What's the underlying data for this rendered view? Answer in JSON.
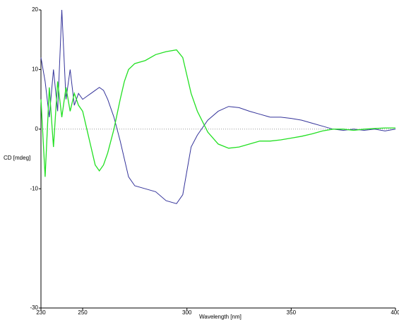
{
  "chart_data": {
    "type": "line",
    "x_label": "Wavelength [nm]",
    "y_label": "CD [mdeg]",
    "x": [
      230,
      232,
      234,
      236,
      238,
      240,
      242,
      244,
      246,
      248,
      250,
      252,
      254,
      256,
      258,
      260,
      262,
      265,
      268,
      270,
      272,
      275,
      280,
      285,
      290,
      295,
      298,
      300,
      302,
      305,
      310,
      315,
      320,
      325,
      330,
      335,
      340,
      345,
      350,
      355,
      360,
      365,
      370,
      375,
      380,
      385,
      390,
      395,
      400
    ],
    "series": [
      {
        "color": "#34339a",
        "values": [
          12,
          8,
          2,
          10,
          3,
          20,
          5,
          10,
          4,
          6,
          5,
          5.5,
          6,
          6.5,
          7,
          6.5,
          5,
          2,
          -2,
          -5,
          -8,
          -9.5,
          -10,
          -10.5,
          -12,
          -12.5,
          -11,
          -7,
          -3,
          -1,
          1.5,
          3,
          3.8,
          3.6,
          3,
          2.5,
          2,
          2,
          1.8,
          1.5,
          1,
          0.5,
          0,
          -0.2,
          0,
          -0.2,
          0,
          -0.3,
          0
        ]
      },
      {
        "color": "#22e022",
        "values": [
          5,
          -8,
          7,
          -3,
          8,
          2,
          7,
          3,
          6,
          4,
          3,
          0,
          -3,
          -6,
          -7,
          -6,
          -4,
          0,
          5,
          8,
          10,
          11,
          11.5,
          12.5,
          13,
          13.3,
          12,
          9,
          6,
          3,
          -0.5,
          -2.5,
          -3.2,
          -3,
          -2.5,
          -2,
          -2,
          -1.8,
          -1.5,
          -1.2,
          -0.8,
          -0.3,
          0,
          0,
          -0.2,
          0,
          0.1,
          0.2,
          0.2
        ]
      }
    ],
    "xlim": [
      230,
      400
    ],
    "xticks": [
      230,
      250,
      300,
      350,
      400
    ],
    "ylim": [
      -30,
      20
    ],
    "yticks": [
      20,
      10,
      0,
      -10,
      -30
    ],
    "zero_line": true
  }
}
